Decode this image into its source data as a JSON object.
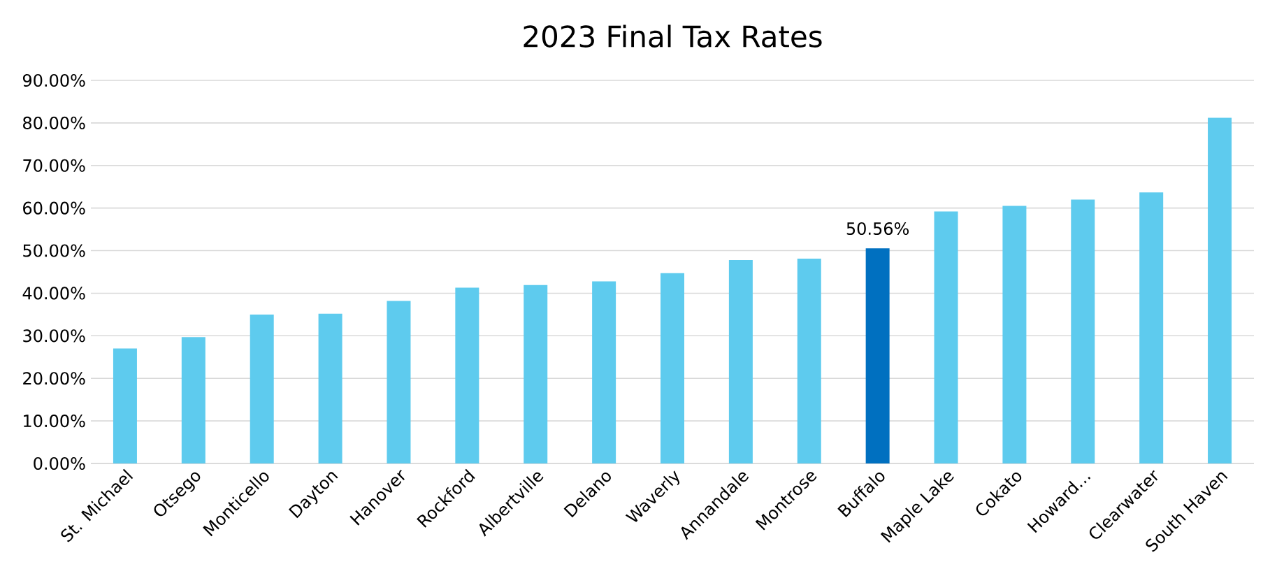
{
  "chart_data": {
    "type": "bar",
    "title": "2023 Final Tax Rates",
    "categories": [
      "St. Michael",
      "Otsego",
      "Monticello",
      "Dayton",
      "Hanover",
      "Rockford",
      "Albertville",
      "Delano",
      "Waverly",
      "Annandale",
      "Montrose",
      "Buffalo",
      "Maple Lake",
      "Cokato",
      "Howard…",
      "Clearwater",
      "South Haven"
    ],
    "values": [
      27.0,
      29.7,
      35.0,
      35.2,
      38.2,
      41.3,
      41.9,
      42.8,
      44.7,
      47.8,
      48.1,
      50.56,
      59.2,
      60.5,
      62.0,
      63.7,
      81.2
    ],
    "colors": [
      "#5ecbee",
      "#5ecbee",
      "#5ecbee",
      "#5ecbee",
      "#5ecbee",
      "#5ecbee",
      "#5ecbee",
      "#5ecbee",
      "#5ecbee",
      "#5ecbee",
      "#5ecbee",
      "#0070c0",
      "#5ecbee",
      "#5ecbee",
      "#5ecbee",
      "#5ecbee",
      "#5ecbee"
    ],
    "value_labels": [
      null,
      null,
      null,
      null,
      null,
      null,
      null,
      null,
      null,
      null,
      null,
      "50.56%",
      null,
      null,
      null,
      null,
      null
    ],
    "ylim": [
      0,
      90
    ],
    "yticks": [
      {
        "value": 0,
        "label": "0.00%"
      },
      {
        "value": 10,
        "label": "10.00%"
      },
      {
        "value": 20,
        "label": "20.00%"
      },
      {
        "value": 30,
        "label": "30.00%"
      },
      {
        "value": 40,
        "label": "40.00%"
      },
      {
        "value": 50,
        "label": "50.00%"
      },
      {
        "value": 60,
        "label": "60.00%"
      },
      {
        "value": 70,
        "label": "70.00%"
      },
      {
        "value": 80,
        "label": "80.00%"
      },
      {
        "value": 90,
        "label": "90.00%"
      }
    ],
    "grid": "y"
  }
}
